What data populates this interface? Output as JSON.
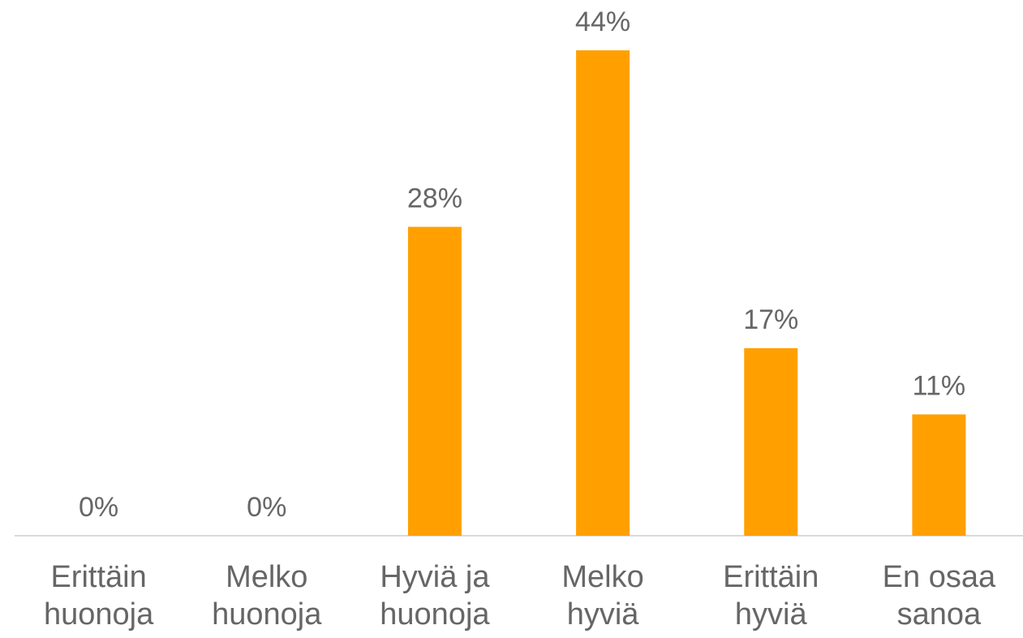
{
  "chart_data": {
    "type": "bar",
    "categories": [
      "Erittäin huonoja",
      "Melko huonoja",
      "Hyviä ja huonoja",
      "Melko hyviä",
      "Erittäin hyviä",
      "En osaa sanoa"
    ],
    "values": [
      0,
      0,
      28,
      44,
      17,
      11
    ],
    "value_labels": [
      "0%",
      "0%",
      "28%",
      "44%",
      "17%",
      "11%"
    ],
    "color": "#ffa000"
  }
}
